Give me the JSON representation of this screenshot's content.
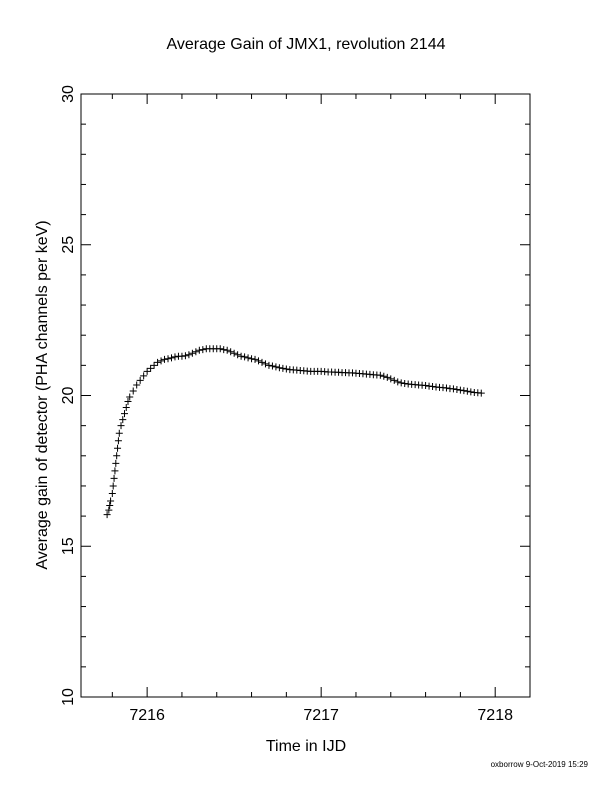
{
  "chart_data": {
    "type": "scatter",
    "title": "Average Gain of JMX1, revolution 2144",
    "xlabel": "Time in IJD",
    "ylabel": "Average gain of detector (PHA channels per keV)",
    "xlim": [
      7215.62,
      7218.2
    ],
    "ylim": [
      10,
      30
    ],
    "x_ticks": [
      7216,
      7217,
      7218
    ],
    "y_ticks": [
      10,
      15,
      20,
      25,
      30
    ],
    "marker": "+",
    "grid": false,
    "series": [
      {
        "points": [
          [
            7215.77,
            16.05
          ],
          [
            7215.78,
            16.2
          ],
          [
            7215.785,
            16.35
          ],
          [
            7215.79,
            16.5
          ],
          [
            7215.8,
            16.75
          ],
          [
            7215.805,
            17.0
          ],
          [
            7215.81,
            17.25
          ],
          [
            7215.815,
            17.5
          ],
          [
            7215.82,
            17.75
          ],
          [
            7215.825,
            18.0
          ],
          [
            7215.83,
            18.25
          ],
          [
            7215.835,
            18.5
          ],
          [
            7215.84,
            18.75
          ],
          [
            7215.85,
            19.0
          ],
          [
            7215.86,
            19.2
          ],
          [
            7215.87,
            19.4
          ],
          [
            7215.88,
            19.6
          ],
          [
            7215.89,
            19.8
          ],
          [
            7215.9,
            19.95
          ],
          [
            7215.92,
            20.15
          ],
          [
            7215.94,
            20.35
          ],
          [
            7215.96,
            20.5
          ],
          [
            7215.98,
            20.65
          ],
          [
            7216.0,
            20.8
          ],
          [
            7216.02,
            20.9
          ],
          [
            7216.04,
            21.0
          ],
          [
            7216.06,
            21.1
          ],
          [
            7216.08,
            21.15
          ],
          [
            7216.1,
            21.2
          ],
          [
            7216.12,
            21.22
          ],
          [
            7216.14,
            21.25
          ],
          [
            7216.16,
            21.28
          ],
          [
            7216.18,
            21.3
          ],
          [
            7216.2,
            21.3
          ],
          [
            7216.22,
            21.32
          ],
          [
            7216.24,
            21.35
          ],
          [
            7216.26,
            21.4
          ],
          [
            7216.28,
            21.45
          ],
          [
            7216.3,
            21.5
          ],
          [
            7216.32,
            21.52
          ],
          [
            7216.34,
            21.55
          ],
          [
            7216.36,
            21.55
          ],
          [
            7216.38,
            21.55
          ],
          [
            7216.4,
            21.55
          ],
          [
            7216.42,
            21.55
          ],
          [
            7216.44,
            21.52
          ],
          [
            7216.46,
            21.5
          ],
          [
            7216.48,
            21.45
          ],
          [
            7216.5,
            21.4
          ],
          [
            7216.52,
            21.35
          ],
          [
            7216.54,
            21.3
          ],
          [
            7216.56,
            21.28
          ],
          [
            7216.58,
            21.25
          ],
          [
            7216.6,
            21.22
          ],
          [
            7216.62,
            21.2
          ],
          [
            7216.64,
            21.15
          ],
          [
            7216.66,
            21.1
          ],
          [
            7216.68,
            21.05
          ],
          [
            7216.7,
            21.0
          ],
          [
            7216.72,
            20.98
          ],
          [
            7216.74,
            20.95
          ],
          [
            7216.76,
            20.92
          ],
          [
            7216.78,
            20.9
          ],
          [
            7216.8,
            20.88
          ],
          [
            7216.82,
            20.86
          ],
          [
            7216.84,
            20.85
          ],
          [
            7216.86,
            20.84
          ],
          [
            7216.88,
            20.83
          ],
          [
            7216.9,
            20.82
          ],
          [
            7216.92,
            20.81
          ],
          [
            7216.94,
            20.8
          ],
          [
            7216.96,
            20.8
          ],
          [
            7216.98,
            20.8
          ],
          [
            7217.0,
            20.8
          ],
          [
            7217.02,
            20.79
          ],
          [
            7217.04,
            20.78
          ],
          [
            7217.06,
            20.78
          ],
          [
            7217.08,
            20.77
          ],
          [
            7217.1,
            20.77
          ],
          [
            7217.12,
            20.76
          ],
          [
            7217.14,
            20.76
          ],
          [
            7217.16,
            20.75
          ],
          [
            7217.18,
            20.75
          ],
          [
            7217.2,
            20.74
          ],
          [
            7217.22,
            20.73
          ],
          [
            7217.24,
            20.72
          ],
          [
            7217.26,
            20.71
          ],
          [
            7217.28,
            20.7
          ],
          [
            7217.3,
            20.69
          ],
          [
            7217.32,
            20.68
          ],
          [
            7217.34,
            20.67
          ],
          [
            7217.36,
            20.64
          ],
          [
            7217.38,
            20.6
          ],
          [
            7217.4,
            20.55
          ],
          [
            7217.42,
            20.5
          ],
          [
            7217.44,
            20.45
          ],
          [
            7217.46,
            20.42
          ],
          [
            7217.48,
            20.4
          ],
          [
            7217.5,
            20.38
          ],
          [
            7217.52,
            20.37
          ],
          [
            7217.54,
            20.36
          ],
          [
            7217.56,
            20.35
          ],
          [
            7217.58,
            20.34
          ],
          [
            7217.6,
            20.33
          ],
          [
            7217.62,
            20.31
          ],
          [
            7217.64,
            20.3
          ],
          [
            7217.66,
            20.28
          ],
          [
            7217.68,
            20.27
          ],
          [
            7217.7,
            20.26
          ],
          [
            7217.72,
            20.25
          ],
          [
            7217.74,
            20.23
          ],
          [
            7217.76,
            20.22
          ],
          [
            7217.78,
            20.2
          ],
          [
            7217.8,
            20.18
          ],
          [
            7217.82,
            20.16
          ],
          [
            7217.84,
            20.14
          ],
          [
            7217.86,
            20.12
          ],
          [
            7217.88,
            20.1
          ],
          [
            7217.9,
            20.09
          ],
          [
            7217.92,
            20.08
          ]
        ]
      }
    ]
  },
  "footer": {
    "stamp": "oxborrow  9-Oct-2019 15:29"
  }
}
